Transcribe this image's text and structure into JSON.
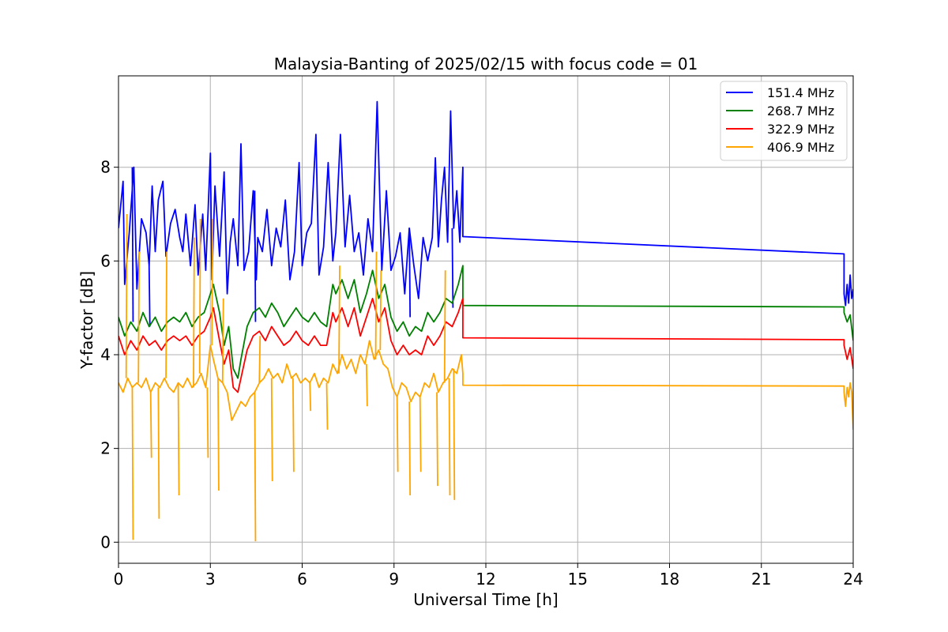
{
  "chart_data": {
    "type": "line",
    "title": "Malaysia-Banting of 2025/02/15 with focus code = 01",
    "xlabel": "Universal Time [h]",
    "ylabel": "Y-factor [dB]",
    "xlim": [
      0,
      24
    ],
    "ylim": [
      -0.45,
      9.95
    ],
    "xticks": [
      0,
      3,
      6,
      9,
      12,
      15,
      18,
      21,
      24
    ],
    "yticks": [
      0,
      2,
      4,
      6,
      8
    ],
    "grid": true,
    "legend_position": "top-right",
    "series": [
      {
        "name": "151.4 MHz",
        "color": "#0000ff",
        "x": [
          0.0,
          0.15,
          0.2,
          0.35,
          0.5,
          0.6,
          0.75,
          0.9,
          1.0,
          1.1,
          1.2,
          1.3,
          1.45,
          1.55,
          1.7,
          1.85,
          2.0,
          2.1,
          2.2,
          2.35,
          2.5,
          2.6,
          2.75,
          2.85,
          3.0,
          3.05,
          3.15,
          3.3,
          3.45,
          3.55,
          3.65,
          3.75,
          3.9,
          4.0,
          4.1,
          4.25,
          4.4,
          4.5,
          4.55,
          4.7,
          4.85,
          5.0,
          5.15,
          5.3,
          5.45,
          5.6,
          5.75,
          5.9,
          6.0,
          6.15,
          6.3,
          6.45,
          6.55,
          6.7,
          6.85,
          7.0,
          7.1,
          7.25,
          7.4,
          7.55,
          7.7,
          7.85,
          8.0,
          8.15,
          8.3,
          8.45,
          8.6,
          8.75,
          8.9,
          9.05,
          9.2,
          9.35,
          9.5,
          9.65,
          9.8,
          9.95,
          10.1,
          10.25,
          10.35,
          10.45,
          10.55,
          10.65,
          10.75,
          10.85,
          10.95,
          11.05,
          11.15,
          11.25,
          11.25,
          23.7,
          23.7,
          23.75,
          23.8,
          23.85,
          23.9,
          23.95,
          24.0
        ],
        "y": [
          6.7,
          7.7,
          5.5,
          6.6,
          8.0,
          5.4,
          6.9,
          6.6,
          5.9,
          7.6,
          6.2,
          7.3,
          7.7,
          6.1,
          6.8,
          7.1,
          6.5,
          6.2,
          7.0,
          5.9,
          7.2,
          5.7,
          7.0,
          5.8,
          8.3,
          5.6,
          7.6,
          6.1,
          7.9,
          5.3,
          6.4,
          6.9,
          5.9,
          8.5,
          5.8,
          6.2,
          7.5,
          5.6,
          6.5,
          6.2,
          7.1,
          5.9,
          6.7,
          6.3,
          7.3,
          5.6,
          6.2,
          8.1,
          5.9,
          6.6,
          6.8,
          8.7,
          5.7,
          6.3,
          8.1,
          6.0,
          6.6,
          8.7,
          6.3,
          7.4,
          6.2,
          6.6,
          5.7,
          6.9,
          6.2,
          9.4,
          5.8,
          7.5,
          5.8,
          6.1,
          6.6,
          5.3,
          6.7,
          5.9,
          5.2,
          6.5,
          6.0,
          6.5,
          8.2,
          6.3,
          7.3,
          8.0,
          6.4,
          9.2,
          6.7,
          7.5,
          6.4,
          8.0,
          6.52,
          6.15,
          5.3,
          5.05,
          5.5,
          5.1,
          5.7,
          5.2,
          5.4
        ],
        "min_dips": [
          [
            0.45,
            4.7
          ],
          [
            1.0,
            4.6
          ],
          [
            4.45,
            4.7
          ],
          [
            9.5,
            4.8
          ],
          [
            10.9,
            5.0
          ]
        ]
      },
      {
        "name": "268.7 MHz",
        "color": "#008000",
        "x": [
          0.0,
          0.2,
          0.4,
          0.6,
          0.8,
          1.0,
          1.2,
          1.4,
          1.6,
          1.8,
          2.0,
          2.2,
          2.4,
          2.6,
          2.8,
          3.0,
          3.1,
          3.3,
          3.45,
          3.6,
          3.75,
          3.9,
          4.0,
          4.2,
          4.4,
          4.6,
          4.8,
          5.0,
          5.2,
          5.4,
          5.6,
          5.8,
          6.0,
          6.2,
          6.4,
          6.6,
          6.8,
          7.0,
          7.1,
          7.3,
          7.5,
          7.7,
          7.9,
          8.1,
          8.3,
          8.5,
          8.7,
          8.9,
          9.1,
          9.3,
          9.5,
          9.7,
          9.9,
          10.1,
          10.3,
          10.5,
          10.7,
          10.9,
          11.1,
          11.25,
          11.25,
          23.7,
          23.7,
          23.8,
          23.9,
          24.0
        ],
        "y": [
          4.8,
          4.4,
          4.7,
          4.5,
          4.9,
          4.6,
          4.8,
          4.5,
          4.7,
          4.8,
          4.7,
          4.9,
          4.6,
          4.8,
          4.9,
          5.3,
          5.5,
          4.9,
          4.2,
          4.6,
          3.7,
          3.5,
          3.9,
          4.6,
          4.9,
          5.0,
          4.8,
          5.1,
          4.9,
          4.6,
          4.8,
          5.0,
          4.8,
          4.7,
          4.9,
          4.7,
          4.6,
          5.5,
          5.3,
          5.6,
          5.2,
          5.6,
          4.9,
          5.3,
          5.8,
          5.2,
          5.5,
          4.8,
          4.5,
          4.7,
          4.4,
          4.6,
          4.5,
          4.9,
          4.7,
          4.9,
          5.2,
          5.1,
          5.5,
          5.9,
          5.05,
          5.02,
          4.9,
          4.7,
          4.85,
          4.3
        ]
      },
      {
        "name": "322.9 MHz",
        "color": "#ff0000",
        "x": [
          0.0,
          0.2,
          0.4,
          0.6,
          0.8,
          1.0,
          1.2,
          1.4,
          1.6,
          1.8,
          2.0,
          2.2,
          2.4,
          2.6,
          2.8,
          3.0,
          3.1,
          3.3,
          3.45,
          3.6,
          3.75,
          3.9,
          4.0,
          4.2,
          4.4,
          4.6,
          4.8,
          5.0,
          5.2,
          5.4,
          5.6,
          5.8,
          6.0,
          6.2,
          6.4,
          6.6,
          6.8,
          7.0,
          7.1,
          7.3,
          7.5,
          7.7,
          7.9,
          8.1,
          8.3,
          8.5,
          8.7,
          8.9,
          9.1,
          9.3,
          9.5,
          9.7,
          9.9,
          10.1,
          10.3,
          10.5,
          10.7,
          10.9,
          11.1,
          11.25,
          11.25,
          23.7,
          23.7,
          23.8,
          23.9,
          24.0
        ],
        "y": [
          4.4,
          4.0,
          4.3,
          4.1,
          4.4,
          4.2,
          4.3,
          4.1,
          4.3,
          4.4,
          4.3,
          4.4,
          4.2,
          4.4,
          4.5,
          4.8,
          5.0,
          4.3,
          3.8,
          4.1,
          3.3,
          3.2,
          3.5,
          4.1,
          4.4,
          4.5,
          4.3,
          4.6,
          4.4,
          4.2,
          4.3,
          4.5,
          4.3,
          4.2,
          4.4,
          4.2,
          4.2,
          4.9,
          4.7,
          5.0,
          4.6,
          5.0,
          4.4,
          4.8,
          5.2,
          4.7,
          5.0,
          4.3,
          4.0,
          4.2,
          4.0,
          4.1,
          4.0,
          4.4,
          4.2,
          4.4,
          4.7,
          4.6,
          4.9,
          5.2,
          4.36,
          4.32,
          4.2,
          3.9,
          4.15,
          3.7
        ]
      },
      {
        "name": "406.9 MHz",
        "color": "#ffa500",
        "x": [
          0.0,
          0.15,
          0.3,
          0.45,
          0.6,
          0.75,
          0.9,
          1.05,
          1.2,
          1.35,
          1.5,
          1.65,
          1.8,
          1.95,
          2.1,
          2.25,
          2.4,
          2.55,
          2.7,
          2.85,
          3.0,
          3.1,
          3.25,
          3.4,
          3.55,
          3.7,
          3.85,
          4.0,
          4.15,
          4.3,
          4.45,
          4.6,
          4.75,
          4.9,
          5.05,
          5.2,
          5.35,
          5.5,
          5.65,
          5.8,
          5.95,
          6.1,
          6.25,
          6.4,
          6.55,
          6.7,
          6.85,
          7.0,
          7.15,
          7.3,
          7.45,
          7.6,
          7.75,
          7.9,
          8.05,
          8.2,
          8.35,
          8.5,
          8.65,
          8.8,
          8.95,
          9.1,
          9.25,
          9.4,
          9.55,
          9.7,
          9.85,
          10.0,
          10.15,
          10.3,
          10.45,
          10.6,
          10.75,
          10.9,
          11.05,
          11.2,
          11.25,
          11.25,
          23.7,
          23.7,
          23.75,
          23.8,
          23.85,
          23.9,
          23.95,
          24.0
        ],
        "y": [
          3.4,
          3.2,
          3.5,
          3.3,
          3.4,
          3.3,
          3.5,
          3.2,
          3.4,
          3.3,
          3.5,
          3.3,
          3.2,
          3.4,
          3.3,
          3.5,
          3.3,
          3.4,
          3.6,
          3.3,
          4.2,
          3.9,
          3.5,
          3.4,
          3.2,
          2.6,
          2.8,
          3.0,
          2.9,
          3.1,
          3.2,
          3.4,
          3.5,
          3.7,
          3.5,
          3.6,
          3.4,
          3.8,
          3.5,
          3.6,
          3.4,
          3.5,
          3.4,
          3.6,
          3.3,
          3.5,
          3.4,
          3.8,
          3.6,
          4.0,
          3.7,
          3.9,
          3.6,
          4.0,
          3.8,
          4.3,
          3.9,
          4.1,
          3.8,
          3.7,
          3.3,
          3.1,
          3.4,
          3.3,
          3.0,
          3.2,
          3.1,
          3.4,
          3.3,
          3.6,
          3.2,
          3.4,
          3.5,
          3.7,
          3.6,
          4.0,
          3.6,
          3.35,
          3.33,
          3.2,
          2.9,
          3.3,
          3.1,
          3.4,
          3.2,
          2.4
        ],
        "spikes": [
          [
            0.25,
            7.0
          ],
          [
            0.45,
            0.05
          ],
          [
            0.65,
            6.2
          ],
          [
            1.05,
            1.8
          ],
          [
            1.3,
            0.5
          ],
          [
            1.55,
            6.2
          ],
          [
            1.95,
            1.0
          ],
          [
            2.45,
            6.5
          ],
          [
            2.65,
            6.9
          ],
          [
            2.9,
            1.8
          ],
          [
            3.05,
            6.9
          ],
          [
            3.25,
            1.1
          ],
          [
            3.4,
            5.2
          ],
          [
            4.45,
            0.02
          ],
          [
            4.6,
            4.4
          ],
          [
            5.0,
            1.3
          ],
          [
            5.7,
            1.5
          ],
          [
            6.25,
            2.8
          ],
          [
            6.8,
            2.4
          ],
          [
            7.2,
            5.9
          ],
          [
            8.1,
            2.9
          ],
          [
            8.4,
            6.2
          ],
          [
            8.55,
            5.8
          ],
          [
            9.1,
            1.5
          ],
          [
            9.5,
            1.0
          ],
          [
            9.85,
            1.5
          ],
          [
            10.4,
            1.2
          ],
          [
            10.65,
            5.8
          ],
          [
            10.8,
            1.0
          ],
          [
            10.95,
            0.9
          ]
        ]
      }
    ]
  }
}
